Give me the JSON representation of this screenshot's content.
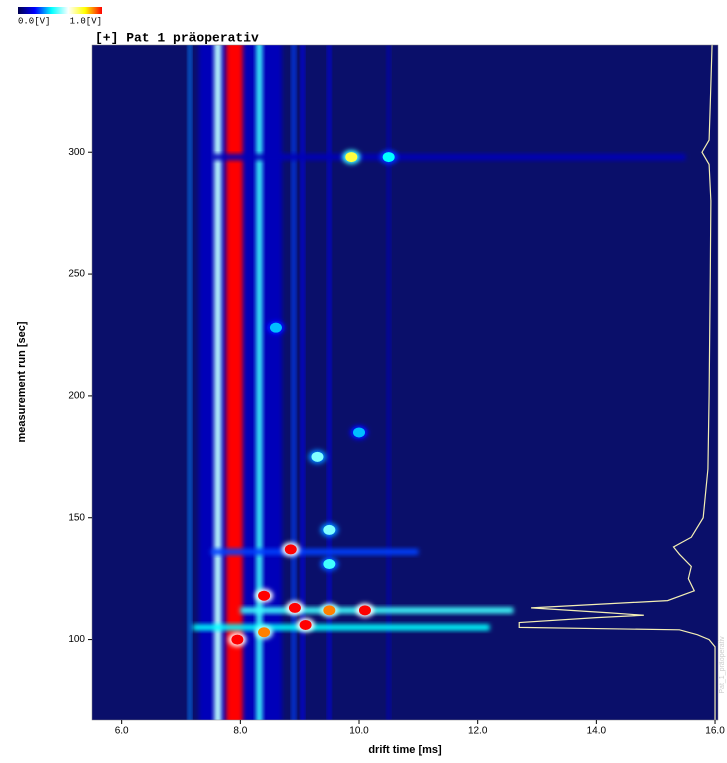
{
  "chart_data": {
    "type": "heatmap",
    "title": "[+] Pat 1 präoperativ",
    "side_label": "Pat_1_präoperativ",
    "x_label": "drift time [ms]",
    "y_label": "measurement run [sec]",
    "colorbar": {
      "min_label": "0.0[V]",
      "max_label": "1.0[V]",
      "colors": [
        "#000050",
        "#0000ff",
        "#00ffff",
        "#ffffff",
        "#ffff00",
        "#ff0000"
      ]
    },
    "background": "#0a0f6a",
    "xlim": [
      5.5,
      16.05
    ],
    "ylim": [
      67,
      344
    ],
    "xticks": [
      {
        "value": 6,
        "label": "6.0"
      },
      {
        "value": 8,
        "label": "8.0"
      },
      {
        "value": 10,
        "label": "10.0"
      },
      {
        "value": 12,
        "label": "12.0"
      },
      {
        "value": 14,
        "label": "14.0"
      },
      {
        "value": 16,
        "label": "16.0"
      }
    ],
    "yticks": [
      100,
      150,
      200,
      250,
      300
    ],
    "bands": [
      {
        "x": 8.0,
        "width": 1.4,
        "intensity": 0.12
      },
      {
        "x": 7.62,
        "width": 0.12,
        "intensity": 0.55
      },
      {
        "x": 8.32,
        "width": 0.1,
        "intensity": 0.45
      },
      {
        "x": 7.15,
        "width": 0.05,
        "intensity": 0.3
      },
      {
        "x": 8.9,
        "width": 0.06,
        "intensity": 0.25
      },
      {
        "x": 9.05,
        "width": 0.05,
        "intensity": 0.2
      },
      {
        "x": 9.5,
        "width": 0.05,
        "intensity": 0.18
      },
      {
        "x": 10.5,
        "width": 0.05,
        "intensity": 0.12
      },
      {
        "x": 7.9,
        "width": 0.28,
        "intensity": 1.0
      }
    ],
    "rows": [
      {
        "y": 112,
        "x0": 8.0,
        "x1": 12.6,
        "intensity": 0.45
      },
      {
        "y": 105,
        "x0": 7.2,
        "x1": 12.2,
        "intensity": 0.4
      },
      {
        "y": 136,
        "x0": 7.5,
        "x1": 11.0,
        "intensity": 0.25
      },
      {
        "y": 298,
        "x0": 7.5,
        "x1": 15.5,
        "intensity": 0.12
      }
    ],
    "peaks": [
      {
        "x": 9.87,
        "y": 298,
        "intensity": 0.75
      },
      {
        "x": 10.5,
        "y": 298,
        "intensity": 0.4
      },
      {
        "x": 8.85,
        "y": 137,
        "intensity": 1.0
      },
      {
        "x": 8.4,
        "y": 118,
        "intensity": 1.0
      },
      {
        "x": 8.92,
        "y": 113,
        "intensity": 1.0
      },
      {
        "x": 9.1,
        "y": 106,
        "intensity": 1.0
      },
      {
        "x": 9.5,
        "y": 112,
        "intensity": 0.9
      },
      {
        "x": 10.1,
        "y": 112,
        "intensity": 1.0
      },
      {
        "x": 7.95,
        "y": 100,
        "intensity": 1.0
      },
      {
        "x": 8.4,
        "y": 103,
        "intensity": 0.9
      },
      {
        "x": 9.3,
        "y": 175,
        "intensity": 0.5
      },
      {
        "x": 9.5,
        "y": 145,
        "intensity": 0.5
      },
      {
        "x": 8.6,
        "y": 228,
        "intensity": 0.35
      },
      {
        "x": 10.0,
        "y": 185,
        "intensity": 0.35
      },
      {
        "x": 9.5,
        "y": 131,
        "intensity": 0.45
      }
    ],
    "profile": {
      "color": "#f3eeb4",
      "y": [
        344,
        320,
        305,
        300,
        295,
        280,
        250,
        200,
        170,
        150,
        142,
        138,
        135,
        130,
        125,
        120,
        116,
        113,
        111,
        110,
        109,
        107,
        105,
        104,
        102,
        100,
        97,
        90,
        67
      ],
      "x": [
        15.95,
        15.92,
        15.9,
        15.78,
        15.9,
        15.93,
        15.92,
        15.9,
        15.88,
        15.8,
        15.6,
        15.3,
        15.4,
        15.6,
        15.55,
        15.65,
        15.2,
        12.9,
        14.2,
        14.8,
        14.0,
        12.7,
        12.7,
        15.4,
        15.7,
        15.9,
        16.0,
        16.0,
        16.0
      ]
    }
  }
}
